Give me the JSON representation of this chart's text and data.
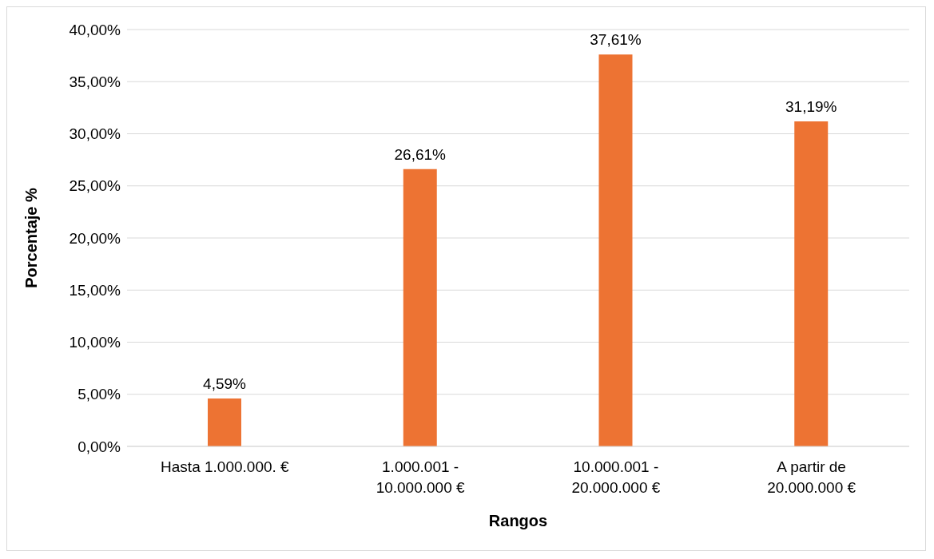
{
  "chart_data": {
    "type": "bar",
    "xlabel": "Rangos",
    "ylabel": "Porcentaje %",
    "categories": [
      "Hasta 1.000.000. €",
      "1.000.001 - 10.000.000 €",
      "10.000.001 - 20.000.000 €",
      "A partir de 20.000.000 €"
    ],
    "values": [
      4.59,
      26.61,
      37.61,
      31.19
    ],
    "value_labels": [
      "4,59%",
      "26,61%",
      "37,61%",
      "31,19%"
    ],
    "color": "#ed7333",
    "ylim": [
      0,
      40
    ],
    "yticks": [
      {
        "value": 0,
        "label": "0,00%"
      },
      {
        "value": 5,
        "label": "5,00%"
      },
      {
        "value": 10,
        "label": "10,00%"
      },
      {
        "value": 15,
        "label": "15,00%"
      },
      {
        "value": 20,
        "label": "20,00%"
      },
      {
        "value": 25,
        "label": "25,00%"
      },
      {
        "value": 30,
        "label": "30,00%"
      },
      {
        "value": 35,
        "label": "35,00%"
      },
      {
        "value": 40,
        "label": "40,00%"
      }
    ],
    "grid": "y"
  }
}
